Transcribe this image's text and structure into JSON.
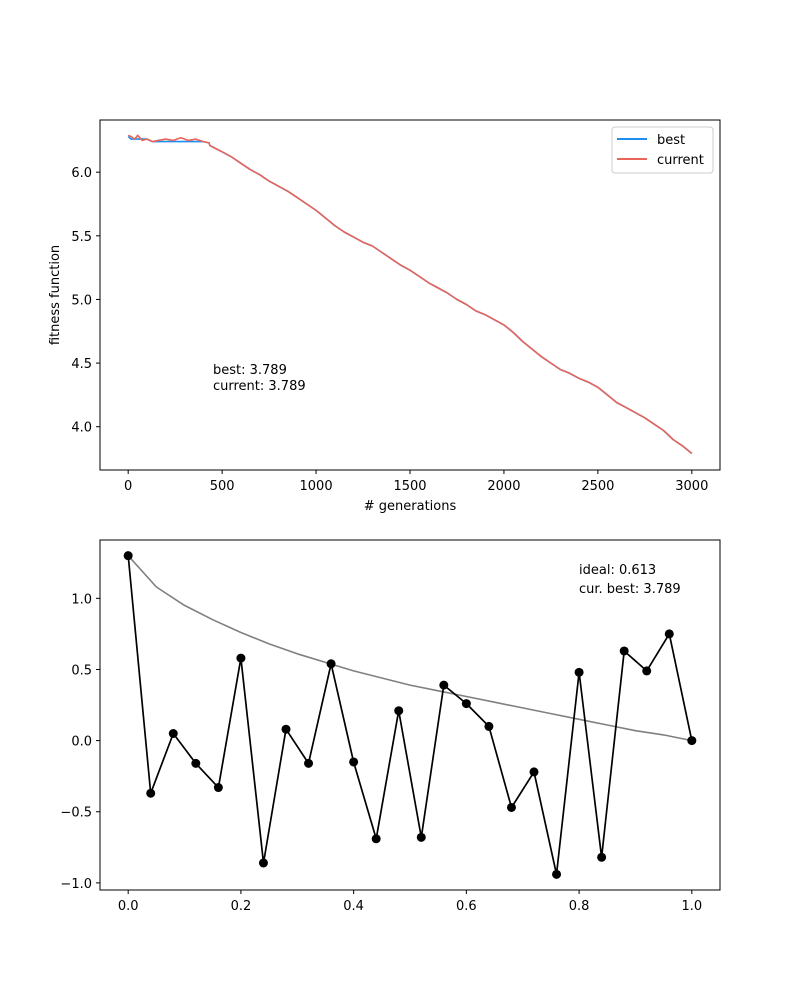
{
  "chart_data": [
    {
      "type": "line",
      "title": "",
      "xlabel": "# generations",
      "ylabel": "fitness function",
      "xlim": [
        -150,
        3150
      ],
      "ylim": [
        3.66,
        6.41
      ],
      "xticks": [
        0,
        500,
        1000,
        1500,
        2000,
        2500,
        3000
      ],
      "xtick_labels": [
        "0",
        "500",
        "1000",
        "1500",
        "2000",
        "2500",
        "3000"
      ],
      "yticks": [
        4.0,
        4.5,
        5.0,
        5.5,
        6.0
      ],
      "ytick_labels": [
        "4.0",
        "4.5",
        "5.0",
        "5.5",
        "6.0"
      ],
      "legend": {
        "position": "top-right"
      },
      "series": [
        {
          "name": "best",
          "color": "#1f8ef1",
          "x": [
            0,
            15,
            35,
            50,
            100,
            130,
            200,
            300,
            400,
            430,
            435,
            460,
            500,
            550,
            600,
            650,
            700,
            750,
            800,
            850,
            900,
            950,
            1000,
            1050,
            1100,
            1150,
            1200,
            1250,
            1300,
            1350,
            1400,
            1450,
            1500,
            1550,
            1600,
            1650,
            1700,
            1750,
            1800,
            1850,
            1900,
            1950,
            2000,
            2050,
            2100,
            2150,
            2200,
            2250,
            2300,
            2350,
            2400,
            2450,
            2500,
            2550,
            2600,
            2650,
            2700,
            2750,
            2800,
            2850,
            2900,
            2950,
            3000
          ],
          "y": [
            6.28,
            6.26,
            6.26,
            6.26,
            6.26,
            6.24,
            6.24,
            6.24,
            6.24,
            6.23,
            6.21,
            6.19,
            6.16,
            6.12,
            6.07,
            6.02,
            5.98,
            5.93,
            5.89,
            5.85,
            5.8,
            5.75,
            5.7,
            5.64,
            5.58,
            5.53,
            5.49,
            5.45,
            5.42,
            5.37,
            5.32,
            5.27,
            5.23,
            5.18,
            5.13,
            5.09,
            5.05,
            5.0,
            4.96,
            4.91,
            4.88,
            4.84,
            4.8,
            4.74,
            4.67,
            4.61,
            4.55,
            4.5,
            4.45,
            4.42,
            4.38,
            4.35,
            4.31,
            4.25,
            4.19,
            4.15,
            4.11,
            4.07,
            4.02,
            3.97,
            3.9,
            3.85,
            3.79
          ]
        },
        {
          "name": "current",
          "color": "#e8655a",
          "x": [
            0,
            15,
            35,
            50,
            75,
            100,
            130,
            160,
            200,
            240,
            280,
            320,
            360,
            400,
            430,
            435,
            460,
            500,
            550,
            600,
            650,
            700,
            750,
            800,
            850,
            900,
            950,
            1000,
            1050,
            1100,
            1150,
            1200,
            1250,
            1300,
            1350,
            1400,
            1450,
            1500,
            1550,
            1600,
            1650,
            1700,
            1750,
            1800,
            1850,
            1900,
            1950,
            2000,
            2050,
            2100,
            2150,
            2200,
            2250,
            2300,
            2350,
            2400,
            2450,
            2500,
            2550,
            2600,
            2650,
            2700,
            2750,
            2800,
            2850,
            2900,
            2950,
            3000
          ],
          "y": [
            6.29,
            6.28,
            6.26,
            6.29,
            6.25,
            6.26,
            6.24,
            6.25,
            6.26,
            6.25,
            6.27,
            6.25,
            6.26,
            6.24,
            6.23,
            6.21,
            6.19,
            6.16,
            6.12,
            6.07,
            6.02,
            5.98,
            5.93,
            5.89,
            5.85,
            5.8,
            5.75,
            5.7,
            5.64,
            5.58,
            5.53,
            5.49,
            5.45,
            5.42,
            5.37,
            5.32,
            5.27,
            5.23,
            5.18,
            5.13,
            5.09,
            5.05,
            5.0,
            4.96,
            4.91,
            4.88,
            4.84,
            4.8,
            4.74,
            4.67,
            4.61,
            4.55,
            4.5,
            4.45,
            4.42,
            4.38,
            4.35,
            4.31,
            4.25,
            4.19,
            4.15,
            4.11,
            4.07,
            4.02,
            3.97,
            3.9,
            3.85,
            3.79
          ]
        }
      ],
      "annotations": [
        "best: 3.789",
        "current: 3.789"
      ]
    },
    {
      "type": "line",
      "title": "",
      "xlabel": "",
      "ylabel": "",
      "xlim": [
        -0.05,
        1.05
      ],
      "ylim": [
        -1.05,
        1.41
      ],
      "xticks": [
        0.0,
        0.2,
        0.4,
        0.6,
        0.8,
        1.0
      ],
      "xtick_labels": [
        "0.0",
        "0.2",
        "0.4",
        "0.6",
        "0.8",
        "1.0"
      ],
      "yticks": [
        -1.0,
        -0.5,
        0.0,
        0.5,
        1.0
      ],
      "ytick_labels": [
        "−1.0",
        "−0.5",
        "0.0",
        "0.5",
        "1.0"
      ],
      "series": [
        {
          "name": "",
          "color": "#808080",
          "x": [
            0.0,
            0.05,
            0.1,
            0.15,
            0.2,
            0.25,
            0.3,
            0.35,
            0.4,
            0.45,
            0.5,
            0.55,
            0.6,
            0.65,
            0.7,
            0.75,
            0.8,
            0.85,
            0.9,
            0.95,
            1.0
          ],
          "y": [
            1.3,
            1.08,
            0.95,
            0.85,
            0.76,
            0.68,
            0.61,
            0.55,
            0.49,
            0.44,
            0.39,
            0.35,
            0.31,
            0.27,
            0.23,
            0.19,
            0.15,
            0.11,
            0.07,
            0.04,
            0.0
          ]
        },
        {
          "name": "",
          "color": "#000000",
          "markers": true,
          "x": [
            0.0,
            0.04,
            0.08,
            0.12,
            0.16,
            0.2,
            0.24,
            0.28,
            0.32,
            0.36,
            0.4,
            0.44,
            0.48,
            0.52,
            0.56,
            0.6,
            0.64,
            0.68,
            0.72,
            0.76,
            0.8,
            0.84,
            0.88,
            0.92,
            0.96,
            1.0
          ],
          "y": [
            1.3,
            -0.37,
            0.05,
            -0.16,
            -0.33,
            0.58,
            -0.86,
            0.08,
            -0.16,
            0.54,
            -0.15,
            -0.69,
            0.21,
            -0.68,
            0.39,
            0.26,
            0.1,
            -0.47,
            -0.22,
            -0.94,
            0.48,
            -0.82,
            0.63,
            0.49,
            0.75,
            0.0
          ]
        }
      ],
      "annotations": [
        "ideal: 0.613",
        "cur. best: 3.789"
      ]
    }
  ]
}
